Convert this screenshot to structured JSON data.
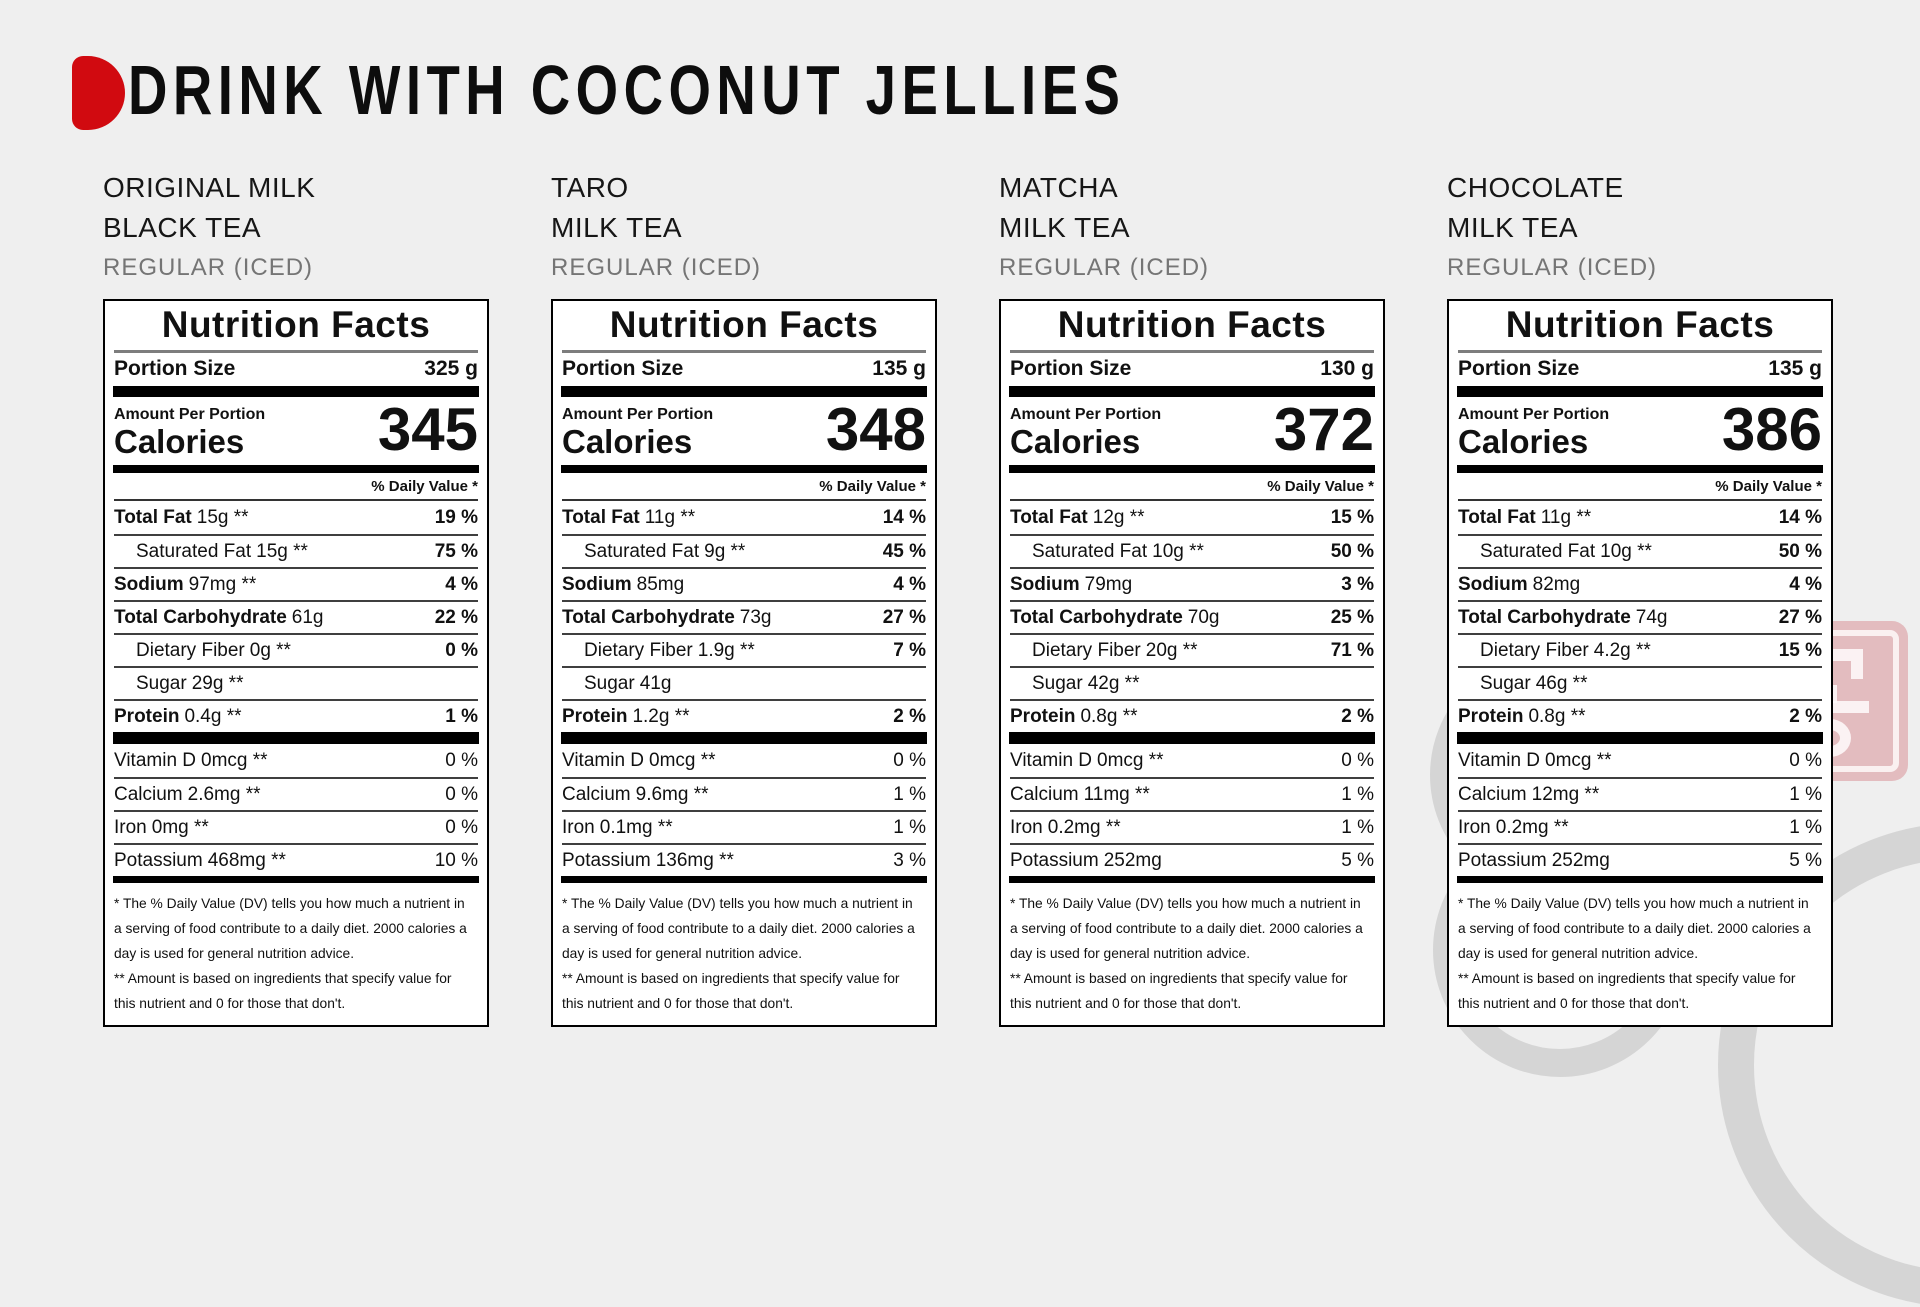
{
  "header": {
    "title": "DRINK WITH COCONUT JELLIES"
  },
  "colors": {
    "background": "#efefef",
    "accent_red": "#d10a10",
    "label_border": "#000000",
    "subtitle_gray": "#757575",
    "watermark_pink": "rgba(199,58,68,0.28)",
    "watermark_ring_gray": "#d7d7d7"
  },
  "watermark": {
    "stamp_char": "공"
  },
  "shared": {
    "nf_title": "Nutrition Facts",
    "portion_label": "Portion Size",
    "amount_label": "Amount Per Portion",
    "calories_label": "Calories",
    "dv_label": "% Daily Value *",
    "footnote1_lines": [
      "* The % Daily Value (DV) tells you how much a nutrient in",
      "a serving of food contribute to a daily diet. 2000 calories a",
      "day is used for general nutrition advice."
    ],
    "footnote2_lines": [
      "** Amount is based on ingredients that specify value for",
      "this nutrient and 0 for those that don't."
    ]
  },
  "products": [
    {
      "name_line1": "ORIGINAL MILK",
      "name_line2": "BLACK TEA",
      "subtitle": "REGULAR (ICED)",
      "portion": "325 g",
      "calories": "345",
      "rows": [
        {
          "label": "Total Fat",
          "amount": "15g **",
          "dv": "19 %"
        },
        {
          "label": "Saturated Fat",
          "amount": "15g **",
          "dv": "75 %"
        },
        {
          "label": "Sodium",
          "amount": "97mg **",
          "dv": "4 %"
        },
        {
          "label": "Total Carbohydrate",
          "amount": "61g",
          "dv": "22 %"
        },
        {
          "label": "Dietary Fiber",
          "amount": "0g **",
          "dv": "0 %"
        },
        {
          "label": "Sugar",
          "amount": "29g **",
          "dv": ""
        },
        {
          "label": "Protein",
          "amount": "0.4g **",
          "dv": "1 %"
        }
      ],
      "vitamins": [
        {
          "label": "Vitamin D",
          "amount": "0mcg **",
          "dv": "0 %"
        },
        {
          "label": "Calcium",
          "amount": "2.6mg **",
          "dv": "0 %"
        },
        {
          "label": "Iron",
          "amount": "0mg **",
          "dv": "0 %"
        },
        {
          "label": "Potassium",
          "amount": "468mg **",
          "dv": "10 %"
        }
      ]
    },
    {
      "name_line1": "TARO",
      "name_line2": "MILK TEA",
      "subtitle": "REGULAR (ICED)",
      "portion": "135 g",
      "calories": "348",
      "rows": [
        {
          "label": "Total Fat",
          "amount": "11g **",
          "dv": "14 %"
        },
        {
          "label": "Saturated Fat",
          "amount": "9g **",
          "dv": "45 %"
        },
        {
          "label": "Sodium",
          "amount": "85mg",
          "dv": "4 %"
        },
        {
          "label": "Total Carbohydrate",
          "amount": "73g",
          "dv": "27 %"
        },
        {
          "label": "Dietary Fiber",
          "amount": "1.9g **",
          "dv": "7 %"
        },
        {
          "label": "Sugar",
          "amount": "41g",
          "dv": ""
        },
        {
          "label": "Protein",
          "amount": "1.2g **",
          "dv": "2 %"
        }
      ],
      "vitamins": [
        {
          "label": "Vitamin D",
          "amount": "0mcg **",
          "dv": "0 %"
        },
        {
          "label": "Calcium",
          "amount": "9.6mg **",
          "dv": "1 %"
        },
        {
          "label": "Iron",
          "amount": "0.1mg **",
          "dv": "1 %"
        },
        {
          "label": "Potassium",
          "amount": "136mg **",
          "dv": "3 %"
        }
      ]
    },
    {
      "name_line1": "MATCHA",
      "name_line2": "MILK TEA",
      "subtitle": "REGULAR (ICED)",
      "portion": "130 g",
      "calories": "372",
      "rows": [
        {
          "label": "Total Fat",
          "amount": "12g **",
          "dv": "15 %"
        },
        {
          "label": "Saturated Fat",
          "amount": "10g **",
          "dv": "50 %"
        },
        {
          "label": "Sodium",
          "amount": "79mg",
          "dv": "3 %"
        },
        {
          "label": "Total Carbohydrate",
          "amount": "70g",
          "dv": "25 %"
        },
        {
          "label": "Dietary Fiber",
          "amount": "20g **",
          "dv": "71 %"
        },
        {
          "label": "Sugar",
          "amount": "42g **",
          "dv": ""
        },
        {
          "label": "Protein",
          "amount": "0.8g **",
          "dv": "2 %"
        }
      ],
      "vitamins": [
        {
          "label": "Vitamin D",
          "amount": "0mcg **",
          "dv": "0 %"
        },
        {
          "label": "Calcium",
          "amount": "11mg **",
          "dv": "1 %"
        },
        {
          "label": "Iron",
          "amount": "0.2mg **",
          "dv": "1 %"
        },
        {
          "label": "Potassium",
          "amount": "252mg",
          "dv": "5 %"
        }
      ]
    },
    {
      "name_line1": "CHOCOLATE",
      "name_line2": "MILK TEA",
      "subtitle": "REGULAR (ICED)",
      "portion": "135 g",
      "calories": "386",
      "rows": [
        {
          "label": "Total Fat",
          "amount": "11g **",
          "dv": "14 %"
        },
        {
          "label": "Saturated Fat",
          "amount": "10g **",
          "dv": "50 %"
        },
        {
          "label": "Sodium",
          "amount": "82mg",
          "dv": "4 %"
        },
        {
          "label": "Total Carbohydrate",
          "amount": "74g",
          "dv": "27 %"
        },
        {
          "label": "Dietary Fiber",
          "amount": "4.2g **",
          "dv": "15 %"
        },
        {
          "label": "Sugar",
          "amount": "46g **",
          "dv": ""
        },
        {
          "label": "Protein",
          "amount": "0.8g **",
          "dv": "2 %"
        }
      ],
      "vitamins": [
        {
          "label": "Vitamin D",
          "amount": "0mcg **",
          "dv": "0 %"
        },
        {
          "label": "Calcium",
          "amount": "12mg **",
          "dv": "1 %"
        },
        {
          "label": "Iron",
          "amount": "0.2mg **",
          "dv": "1 %"
        },
        {
          "label": "Potassium",
          "amount": "252mg",
          "dv": "5 %"
        }
      ]
    }
  ]
}
